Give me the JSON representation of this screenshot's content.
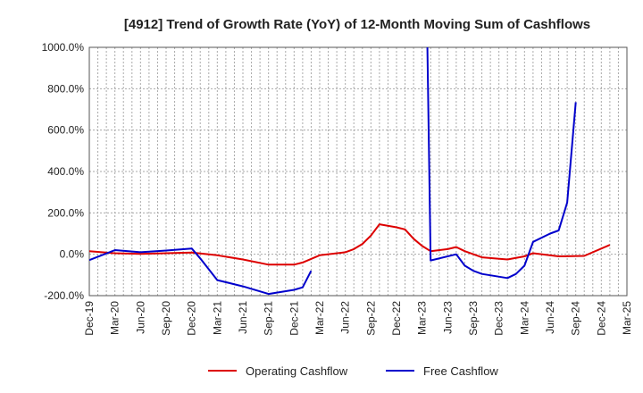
{
  "chart_data": {
    "type": "line",
    "title": "[4912]  Trend of Growth Rate (YoY) of 12-Month Moving Sum of Cashflows",
    "xlabel": "",
    "ylabel": "",
    "ylim": [
      -200,
      1000
    ],
    "yticks": [
      -200,
      0,
      200,
      400,
      600,
      800,
      1000
    ],
    "ytick_labels": [
      "-200.0%",
      "0.0%",
      "200.0%",
      "400.0%",
      "600.0%",
      "800.0%",
      "1000.0%"
    ],
    "x_categories": [
      "Dec-19",
      "Mar-20",
      "Jun-20",
      "Sep-20",
      "Dec-20",
      "Mar-21",
      "Jun-21",
      "Sep-21",
      "Dec-21",
      "Mar-22",
      "Jun-22",
      "Sep-22",
      "Dec-22",
      "Mar-23",
      "Jun-23",
      "Sep-23",
      "Dec-23",
      "Mar-24",
      "Jun-24",
      "Sep-24",
      "Dec-24",
      "Mar-25"
    ],
    "grid": true,
    "legend_position": "bottom-center",
    "series": [
      {
        "name": "Operating Cashflow",
        "color": "#dd0000",
        "points": [
          [
            0,
            15
          ],
          [
            3,
            5
          ],
          [
            6,
            2
          ],
          [
            9,
            5
          ],
          [
            12,
            8
          ],
          [
            15,
            -5
          ],
          [
            18,
            -25
          ],
          [
            21,
            -50
          ],
          [
            24,
            -50
          ],
          [
            25,
            -40
          ],
          [
            27,
            -5
          ],
          [
            30,
            10
          ],
          [
            31,
            25
          ],
          [
            32,
            50
          ],
          [
            33,
            90
          ],
          [
            34,
            145
          ],
          [
            36,
            130
          ],
          [
            37,
            120
          ],
          [
            38,
            75
          ],
          [
            39,
            40
          ],
          [
            40,
            15
          ],
          [
            42,
            25
          ],
          [
            43,
            35
          ],
          [
            44,
            15
          ],
          [
            46,
            -15
          ],
          [
            49,
            -25
          ],
          [
            51,
            -10
          ],
          [
            52,
            5
          ],
          [
            55,
            -10
          ],
          [
            58,
            -8
          ],
          [
            61,
            45
          ]
        ]
      },
      {
        "name": "Free Cashflow",
        "color": "#0000cc",
        "points": [
          [
            0,
            -28
          ],
          [
            3,
            20
          ],
          [
            6,
            10
          ],
          [
            9,
            18
          ],
          [
            12,
            28
          ],
          [
            13,
            -20
          ],
          [
            15,
            -125
          ],
          [
            18,
            -155
          ],
          [
            21,
            -192
          ],
          [
            24,
            -172
          ],
          [
            25,
            -160
          ],
          [
            26,
            -80
          ],
          null,
          [
            39.6,
            1050
          ],
          [
            40,
            -30
          ],
          [
            43,
            0
          ],
          [
            44,
            -55
          ],
          [
            45,
            -80
          ],
          [
            46,
            -95
          ],
          [
            49,
            -115
          ],
          [
            50,
            -95
          ],
          [
            51,
            -55
          ],
          [
            52,
            60
          ],
          [
            54,
            100
          ],
          [
            55,
            115
          ],
          [
            56,
            250
          ],
          [
            57,
            735
          ]
        ]
      }
    ]
  }
}
